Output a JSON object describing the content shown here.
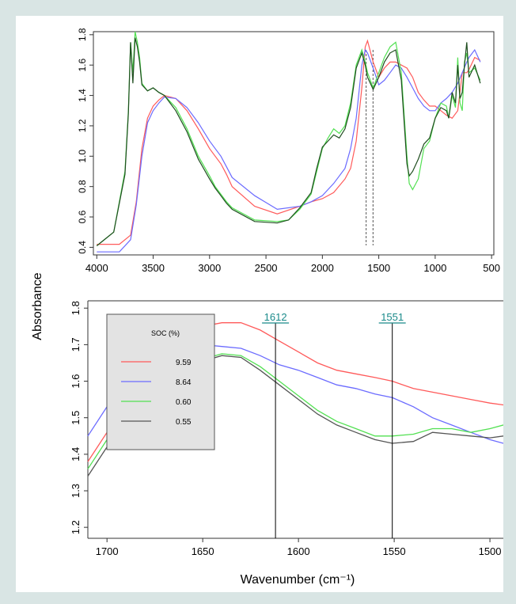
{
  "chart_data": [
    {
      "type": "line",
      "xlabel": "",
      "ylabel": "Absorbance",
      "x_reversed": true,
      "xlim": [
        4030,
        480
      ],
      "ylim": [
        0.35,
        1.82
      ],
      "x_ticks": [
        4000,
        3500,
        3000,
        2500,
        2000,
        1500,
        1000,
        500
      ],
      "y_ticks": [
        0.4,
        0.6,
        0.8,
        1.0,
        1.2,
        1.4,
        1.6,
        1.8
      ],
      "x_tick_labels": [
        "4000",
        "3500",
        "3000",
        "2500",
        "2000",
        "1500",
        "1000",
        "500"
      ],
      "y_tick_labels": [
        "0.4",
        "0.6",
        "0.8",
        "1.0",
        "1.2",
        "1.4",
        "1.6",
        "1.8"
      ],
      "reference_lines": [
        1612,
        1551
      ],
      "grid": false,
      "series": [
        {
          "name": "9.59",
          "color": "#ff5a5a",
          "x": [
            4000,
            3800,
            3700,
            3650,
            3600,
            3550,
            3500,
            3450,
            3400,
            3300,
            3200,
            3100,
            3000,
            2950,
            2900,
            2850,
            2800,
            2600,
            2400,
            2200,
            2100,
            2000,
            1900,
            1800,
            1750,
            1700,
            1650,
            1620,
            1600,
            1550,
            1500,
            1450,
            1400,
            1350,
            1300,
            1250,
            1200,
            1150,
            1100,
            1050,
            1000,
            950,
            900,
            850,
            800,
            780,
            760,
            720,
            700,
            650,
            600
          ],
          "y": [
            0.42,
            0.42,
            0.48,
            0.7,
            1.05,
            1.25,
            1.33,
            1.37,
            1.4,
            1.38,
            1.3,
            1.18,
            1.05,
            1.0,
            0.95,
            0.88,
            0.8,
            0.67,
            0.62,
            0.67,
            0.7,
            0.72,
            0.76,
            0.85,
            0.92,
            1.1,
            1.45,
            1.72,
            1.76,
            1.62,
            1.52,
            1.58,
            1.62,
            1.62,
            1.6,
            1.58,
            1.52,
            1.42,
            1.37,
            1.33,
            1.33,
            1.3,
            1.27,
            1.25,
            1.3,
            1.42,
            1.55,
            1.55,
            1.57,
            1.65,
            1.63
          ]
        },
        {
          "name": "8.64",
          "color": "#6b6bff",
          "x": [
            4000,
            3800,
            3700,
            3650,
            3600,
            3550,
            3500,
            3450,
            3400,
            3300,
            3200,
            3100,
            3000,
            2950,
            2900,
            2850,
            2800,
            2600,
            2400,
            2200,
            2100,
            2000,
            1900,
            1800,
            1750,
            1700,
            1650,
            1620,
            1600,
            1550,
            1500,
            1450,
            1400,
            1350,
            1300,
            1250,
            1200,
            1150,
            1100,
            1050,
            1000,
            950,
            900,
            850,
            800,
            760,
            720,
            700,
            650,
            600
          ],
          "y": [
            0.37,
            0.37,
            0.45,
            0.68,
            1.0,
            1.22,
            1.3,
            1.35,
            1.39,
            1.38,
            1.32,
            1.22,
            1.1,
            1.05,
            1.0,
            0.93,
            0.86,
            0.74,
            0.65,
            0.67,
            0.7,
            0.74,
            0.82,
            0.92,
            1.05,
            1.25,
            1.6,
            1.7,
            1.68,
            1.58,
            1.47,
            1.5,
            1.55,
            1.6,
            1.58,
            1.52,
            1.45,
            1.38,
            1.33,
            1.3,
            1.3,
            1.35,
            1.38,
            1.42,
            1.48,
            1.55,
            1.62,
            1.65,
            1.7,
            1.62
          ]
        },
        {
          "name": "0.60",
          "color": "#52e052",
          "x": [
            4000,
            3850,
            3750,
            3720,
            3700,
            3680,
            3660,
            3640,
            3620,
            3600,
            3550,
            3500,
            3450,
            3400,
            3300,
            3200,
            3100,
            3000,
            2950,
            2900,
            2850,
            2800,
            2600,
            2400,
            2300,
            2200,
            2100,
            2050,
            2000,
            1950,
            1900,
            1850,
            1800,
            1750,
            1700,
            1650,
            1620,
            1600,
            1550,
            1500,
            1450,
            1400,
            1350,
            1300,
            1250,
            1230,
            1200,
            1150,
            1100,
            1050,
            1000,
            950,
            900,
            880,
            850,
            820,
            800,
            780,
            760,
            740,
            720,
            700,
            650,
            600
          ],
          "y": [
            0.41,
            0.5,
            0.9,
            1.3,
            1.75,
            1.55,
            1.82,
            1.75,
            1.65,
            1.48,
            1.43,
            1.45,
            1.42,
            1.4,
            1.32,
            1.18,
            1.0,
            0.87,
            0.8,
            0.75,
            0.7,
            0.66,
            0.58,
            0.57,
            0.58,
            0.65,
            0.75,
            0.9,
            1.05,
            1.12,
            1.18,
            1.15,
            1.2,
            1.35,
            1.6,
            1.7,
            1.62,
            1.55,
            1.45,
            1.55,
            1.65,
            1.72,
            1.75,
            1.55,
            1.0,
            0.82,
            0.78,
            0.85,
            1.05,
            1.1,
            1.25,
            1.35,
            1.33,
            1.25,
            1.4,
            1.32,
            1.65,
            1.35,
            1.3,
            1.62,
            1.68,
            1.55,
            1.58,
            1.5
          ]
        },
        {
          "name": "0.55",
          "color": "#1f4d1f",
          "x": [
            4000,
            3850,
            3750,
            3720,
            3700,
            3680,
            3660,
            3640,
            3620,
            3600,
            3550,
            3500,
            3450,
            3400,
            3300,
            3200,
            3100,
            3000,
            2950,
            2900,
            2850,
            2800,
            2600,
            2400,
            2300,
            2200,
            2100,
            2050,
            2000,
            1950,
            1900,
            1850,
            1800,
            1750,
            1700,
            1650,
            1620,
            1600,
            1550,
            1500,
            1450,
            1400,
            1350,
            1300,
            1250,
            1230,
            1200,
            1150,
            1100,
            1050,
            1000,
            950,
            900,
            880,
            850,
            820,
            800,
            780,
            760,
            740,
            720,
            700,
            650,
            600
          ],
          "y": [
            0.41,
            0.5,
            0.88,
            1.28,
            1.75,
            1.48,
            1.78,
            1.72,
            1.62,
            1.47,
            1.43,
            1.45,
            1.42,
            1.4,
            1.3,
            1.16,
            0.98,
            0.85,
            0.79,
            0.74,
            0.69,
            0.65,
            0.57,
            0.56,
            0.58,
            0.66,
            0.76,
            0.92,
            1.06,
            1.1,
            1.14,
            1.12,
            1.18,
            1.32,
            1.58,
            1.68,
            1.6,
            1.52,
            1.44,
            1.52,
            1.62,
            1.68,
            1.7,
            1.5,
            0.95,
            0.87,
            0.9,
            0.98,
            1.08,
            1.12,
            1.25,
            1.32,
            1.3,
            1.25,
            1.42,
            1.35,
            1.6,
            1.38,
            1.42,
            1.6,
            1.75,
            1.52,
            1.6,
            1.48
          ]
        }
      ]
    },
    {
      "type": "line",
      "xlabel": "Wavenumber (cm⁻¹)",
      "ylabel": "",
      "x_reversed": true,
      "xlim": [
        1710,
        1493
      ],
      "ylim": [
        1.17,
        1.82
      ],
      "x_ticks": [
        1700,
        1650,
        1600,
        1550,
        1500
      ],
      "y_ticks": [
        1.2,
        1.3,
        1.4,
        1.5,
        1.6,
        1.7,
        1.8
      ],
      "x_tick_labels": [
        "1700",
        "1650",
        "1600",
        "1550",
        "1500"
      ],
      "y_tick_labels": [
        "1.2",
        "1.3",
        "1.4",
        "1.5",
        "1.6",
        "1.7",
        "1.8"
      ],
      "grid": false,
      "legend": {
        "title": "SOC (%)",
        "position": "top-left",
        "entries": [
          "9.59",
          "8.64",
          "0.60",
          "0.55"
        ]
      },
      "markers": [
        {
          "x": 1612,
          "label": "1612"
        },
        {
          "x": 1551,
          "label": "1551"
        }
      ],
      "series": [
        {
          "name": "9.59",
          "color": "#ff5a5a",
          "x": [
            1710,
            1700,
            1690,
            1680,
            1670,
            1660,
            1650,
            1640,
            1630,
            1620,
            1610,
            1600,
            1590,
            1580,
            1570,
            1560,
            1551,
            1540,
            1530,
            1520,
            1510,
            1500,
            1493
          ],
          "y": [
            1.38,
            1.46,
            1.56,
            1.65,
            1.71,
            1.74,
            1.75,
            1.76,
            1.76,
            1.74,
            1.71,
            1.68,
            1.65,
            1.63,
            1.62,
            1.61,
            1.6,
            1.58,
            1.57,
            1.56,
            1.55,
            1.54,
            1.535
          ]
        },
        {
          "name": "8.64",
          "color": "#6b6bff",
          "x": [
            1710,
            1700,
            1690,
            1680,
            1670,
            1660,
            1650,
            1640,
            1630,
            1620,
            1610,
            1600,
            1590,
            1580,
            1570,
            1560,
            1551,
            1540,
            1530,
            1520,
            1510,
            1500,
            1493
          ],
          "y": [
            1.45,
            1.53,
            1.6,
            1.65,
            1.68,
            1.69,
            1.7,
            1.695,
            1.69,
            1.67,
            1.645,
            1.63,
            1.61,
            1.59,
            1.58,
            1.565,
            1.555,
            1.53,
            1.5,
            1.48,
            1.46,
            1.44,
            1.43
          ]
        },
        {
          "name": "0.60",
          "color": "#52e052",
          "x": [
            1710,
            1700,
            1690,
            1680,
            1670,
            1660,
            1650,
            1640,
            1630,
            1620,
            1610,
            1600,
            1590,
            1580,
            1570,
            1560,
            1551,
            1540,
            1530,
            1520,
            1510,
            1500,
            1493
          ],
          "y": [
            1.36,
            1.44,
            1.52,
            1.58,
            1.62,
            1.64,
            1.66,
            1.675,
            1.67,
            1.64,
            1.6,
            1.56,
            1.52,
            1.49,
            1.47,
            1.45,
            1.45,
            1.455,
            1.47,
            1.47,
            1.46,
            1.47,
            1.48
          ]
        },
        {
          "name": "0.55",
          "color": "#555555",
          "x": [
            1710,
            1700,
            1690,
            1680,
            1670,
            1660,
            1650,
            1640,
            1630,
            1620,
            1610,
            1600,
            1590,
            1580,
            1570,
            1560,
            1551,
            1540,
            1530,
            1520,
            1510,
            1500,
            1493
          ],
          "y": [
            1.34,
            1.42,
            1.5,
            1.57,
            1.61,
            1.635,
            1.655,
            1.67,
            1.665,
            1.63,
            1.59,
            1.55,
            1.51,
            1.48,
            1.46,
            1.44,
            1.43,
            1.435,
            1.46,
            1.455,
            1.45,
            1.445,
            1.45
          ]
        }
      ]
    }
  ]
}
